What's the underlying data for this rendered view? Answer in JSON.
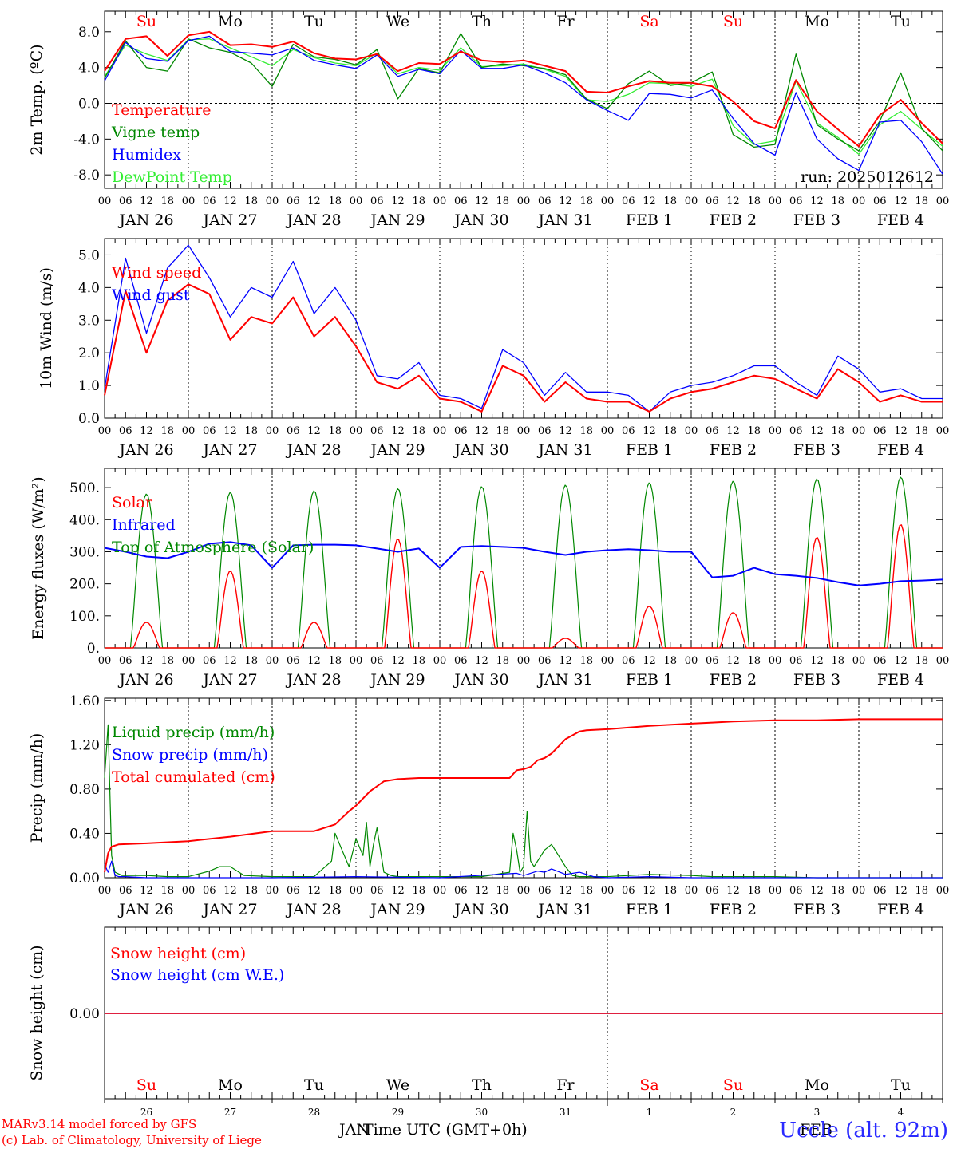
{
  "run_label": "run: 2025012612",
  "footer": {
    "credit_line1": "MARv3.14 model forced by GFS",
    "credit_line2": "(c) Lab. of Climatology, University of Liege",
    "station": "Uccle (alt. 92m)",
    "xaxis_title": "Time UTC (GMT+0h)",
    "month_left": "JAN",
    "month_right": "FEB"
  },
  "colors": {
    "red": "#ff0000",
    "green": "#008800",
    "blue": "#0000ff",
    "lightgreen": "#33ee33",
    "grid": "#000000"
  },
  "day_names": [
    "Su",
    "Mo",
    "Tu",
    "We",
    "Th",
    "Fr",
    "Sa",
    "Su",
    "Mo",
    "Tu"
  ],
  "day_name_colors": [
    "#ff0000",
    "#000000",
    "#000000",
    "#000000",
    "#000000",
    "#000000",
    "#ff0000",
    "#ff0000",
    "#000000",
    "#000000"
  ],
  "day_labels": [
    "JAN 26",
    "JAN 27",
    "JAN 28",
    "JAN 29",
    "JAN 30",
    "JAN 31",
    "FEB  1",
    "FEB  2",
    "FEB  3",
    "FEB  4"
  ],
  "day_numbers": [
    "26",
    "27",
    "28",
    "29",
    "30",
    "31",
    "1",
    "2",
    "3",
    "4"
  ],
  "hour_labels": [
    "00",
    "06",
    "12",
    "18"
  ],
  "chart_data": [
    {
      "type": "line",
      "ylabel": "2m Temp. (ºC)",
      "ylim": [
        -9.5,
        10.3
      ],
      "yticks": [
        -8.0,
        -4.0,
        0.0,
        4.0,
        8.0
      ],
      "ytick_labels": [
        "-8.0",
        "-4.0",
        "0.0",
        "4.0",
        "8.0"
      ],
      "x_unit_note": "hours since JAN 26 00 UTC",
      "x": [
        0,
        6,
        12,
        18,
        24,
        30,
        36,
        42,
        48,
        54,
        60,
        66,
        72,
        78,
        84,
        90,
        96,
        102,
        108,
        114,
        120,
        126,
        132,
        138,
        144,
        150,
        156,
        162,
        168,
        174,
        180,
        186,
        192,
        198,
        204,
        210,
        216,
        222,
        228,
        234,
        240
      ],
      "series": [
        {
          "name": "Temperature",
          "color": "red",
          "values": [
            3.6,
            7.2,
            7.5,
            5.3,
            7.6,
            8.0,
            6.5,
            6.6,
            6.3,
            6.9,
            5.6,
            5.0,
            4.9,
            5.5,
            3.6,
            4.5,
            4.4,
            5.8,
            4.8,
            4.6,
            4.8,
            4.2,
            3.6,
            1.3,
            1.2,
            1.9,
            2.5,
            2.3,
            2.3,
            1.9,
            0.2,
            -2.0,
            -2.8,
            2.6,
            -0.9,
            -2.9,
            -4.8,
            -1.3,
            0.4,
            -2.2,
            -4.5
          ]
        },
        {
          "name": "Vigne temp",
          "color": "green",
          "values": [
            2.8,
            7.0,
            4.0,
            3.6,
            7.2,
            6.2,
            5.7,
            4.5,
            1.9,
            6.6,
            5.2,
            4.9,
            4.3,
            6.0,
            0.5,
            3.9,
            3.4,
            7.8,
            4.0,
            4.4,
            4.2,
            3.9,
            3.2,
            0.5,
            -0.6,
            2.2,
            3.6,
            2.0,
            2.3,
            3.5,
            -3.5,
            -4.9,
            -4.6,
            5.5,
            -2.4,
            -4.0,
            -5.3,
            -2.0,
            3.4,
            -2.8,
            -5.3
          ]
        },
        {
          "name": "Humidex",
          "color": "blue",
          "values": [
            2.5,
            6.8,
            5.0,
            4.7,
            7.0,
            7.5,
            5.8,
            5.6,
            5.4,
            6.2,
            4.8,
            4.3,
            3.9,
            5.4,
            3.0,
            3.8,
            3.3,
            5.9,
            3.9,
            3.9,
            4.3,
            3.4,
            2.3,
            0.4,
            -0.8,
            -1.9,
            1.1,
            1.0,
            0.6,
            1.5,
            -1.7,
            -4.5,
            -5.8,
            1.2,
            -4.0,
            -6.2,
            -7.5,
            -2.1,
            -1.9,
            -4.3,
            -7.9
          ]
        },
        {
          "name": "DewPoint Temp",
          "color": "lightgreen",
          "values": [
            3.0,
            6.5,
            5.5,
            4.8,
            7.1,
            7.2,
            6.2,
            5.2,
            4.2,
            6.0,
            5.1,
            4.5,
            4.2,
            5.6,
            3.3,
            4.0,
            3.7,
            6.2,
            4.1,
            4.2,
            4.4,
            3.8,
            3.0,
            0.4,
            0.2,
            1.0,
            2.3,
            2.2,
            1.9,
            2.7,
            -2.5,
            -4.6,
            -4.2,
            2.5,
            -2.2,
            -3.8,
            -5.7,
            -2.4,
            -0.9,
            -2.9,
            -4.8
          ]
        }
      ],
      "legend": [
        "Temperature",
        "Vigne temp",
        "Humidex",
        "DewPoint Temp"
      ],
      "grid": true
    },
    {
      "type": "line",
      "ylabel": "10m Wind (m/s)",
      "ylim": [
        0,
        5.5
      ],
      "yticks": [
        0,
        1,
        2,
        3,
        4,
        5
      ],
      "ytick_labels": [
        "0.0",
        "1.0",
        "2.0",
        "3.0",
        "4.0",
        "5.0"
      ],
      "x": [
        0,
        6,
        12,
        18,
        24,
        30,
        36,
        42,
        48,
        54,
        60,
        66,
        72,
        78,
        84,
        90,
        96,
        102,
        108,
        114,
        120,
        126,
        132,
        138,
        144,
        150,
        156,
        162,
        168,
        174,
        180,
        186,
        192,
        198,
        204,
        210,
        216,
        222,
        228,
        234,
        240
      ],
      "series": [
        {
          "name": "Wind speed",
          "color": "red",
          "values": [
            0.7,
            3.9,
            2.0,
            3.6,
            4.1,
            3.8,
            2.4,
            3.1,
            2.9,
            3.7,
            2.5,
            3.1,
            2.2,
            1.1,
            0.9,
            1.3,
            0.6,
            0.5,
            0.2,
            1.6,
            1.3,
            0.5,
            1.1,
            0.6,
            0.5,
            0.5,
            0.2,
            0.6,
            0.8,
            0.9,
            1.1,
            1.3,
            1.2,
            0.9,
            0.6,
            1.5,
            1.1,
            0.5,
            0.7,
            0.5,
            0.5
          ]
        },
        {
          "name": "Wind gust",
          "color": "blue",
          "values": [
            0.9,
            4.9,
            2.6,
            4.6,
            5.3,
            4.3,
            3.1,
            4.0,
            3.7,
            4.8,
            3.2,
            4.0,
            3.0,
            1.3,
            1.2,
            1.7,
            0.7,
            0.6,
            0.3,
            2.1,
            1.7,
            0.7,
            1.4,
            0.8,
            0.8,
            0.7,
            0.2,
            0.8,
            1.0,
            1.1,
            1.3,
            1.6,
            1.6,
            1.1,
            0.7,
            1.9,
            1.5,
            0.8,
            0.9,
            0.6,
            0.6
          ]
        }
      ],
      "legend": [
        "Wind speed",
        "Wind gust"
      ],
      "grid": true
    },
    {
      "type": "line",
      "ylabel": "Energy fluxes (W/m²)",
      "ylim": [
        0,
        560
      ],
      "yticks": [
        0,
        100,
        200,
        300,
        400,
        500
      ],
      "ytick_labels": [
        "0.",
        "100.",
        "200.",
        "300.",
        "400.",
        "500."
      ],
      "series": [
        {
          "name": "Solar",
          "color": "red",
          "daily_peaks": [
            80,
            240,
            80,
            340,
            240,
            30,
            130,
            110,
            345,
            385
          ]
        },
        {
          "name": "Infrared",
          "color": "blue",
          "x": [
            0,
            6,
            12,
            18,
            24,
            30,
            36,
            42,
            48,
            54,
            60,
            66,
            72,
            78,
            84,
            90,
            96,
            102,
            108,
            114,
            120,
            126,
            132,
            138,
            144,
            150,
            156,
            162,
            168,
            174,
            180,
            186,
            192,
            198,
            204,
            210,
            216,
            222,
            228,
            234,
            240
          ],
          "values": [
            312,
            300,
            285,
            280,
            300,
            325,
            330,
            320,
            250,
            320,
            322,
            322,
            320,
            310,
            300,
            310,
            250,
            315,
            318,
            315,
            312,
            300,
            290,
            300,
            305,
            308,
            305,
            300,
            300,
            220,
            225,
            250,
            230,
            225,
            218,
            205,
            195,
            200,
            208,
            210,
            213
          ]
        },
        {
          "name": "Top of Atmosphere (Solar)",
          "color": "green",
          "daily_peaks": [
            480,
            485,
            490,
            497,
            503,
            508,
            515,
            520,
            527,
            533
          ]
        }
      ],
      "legend": [
        "Solar",
        "Infrared",
        "Top of Atmosphere (Solar)"
      ],
      "grid": true
    },
    {
      "type": "line",
      "ylabel": "Precip (mm/h)",
      "ylim": [
        0,
        1.62
      ],
      "yticks": [
        0,
        0.4,
        0.8,
        1.2,
        1.6
      ],
      "ytick_labels": [
        "0.00",
        "0.40",
        "0.80",
        "1.20",
        "1.60"
      ],
      "series": [
        {
          "name": "Liquid precip (mm/h)",
          "color": "green",
          "x": [
            0,
            1,
            2,
            3,
            5,
            8,
            12,
            18,
            24,
            30,
            33,
            36,
            40,
            48,
            60,
            65,
            66,
            68,
            70,
            72,
            74,
            75,
            76,
            77,
            78,
            79,
            80,
            82,
            84,
            90,
            96,
            108,
            116,
            117,
            118,
            119,
            120,
            121,
            122,
            123,
            124,
            126,
            128,
            130,
            132,
            134,
            136,
            138,
            140,
            144,
            156,
            168,
            174,
            180,
            192,
            204,
            216,
            228,
            240
          ],
          "values": [
            0.9,
            1.38,
            0.2,
            0.05,
            0.02,
            0.02,
            0.02,
            0.01,
            0.01,
            0.06,
            0.1,
            0.1,
            0.02,
            0.01,
            0.01,
            0.15,
            0.4,
            0.25,
            0.1,
            0.35,
            0.2,
            0.5,
            0.1,
            0.3,
            0.45,
            0.25,
            0.05,
            0.02,
            0.01,
            0.01,
            0.01,
            0.01,
            0.05,
            0.4,
            0.25,
            0.05,
            0.1,
            0.6,
            0.15,
            0.1,
            0.15,
            0.25,
            0.3,
            0.2,
            0.1,
            0.02,
            0.01,
            0.01,
            0.01,
            0.01,
            0.03,
            0.02,
            0.01,
            0.01,
            0.01,
            0.0,
            0.0,
            0.0,
            0.0
          ]
        },
        {
          "name": "Snow precip (mm/h)",
          "color": "blue",
          "x": [
            0,
            1,
            2,
            3,
            4,
            6,
            12,
            24,
            48,
            72,
            96,
            118,
            120,
            124,
            126,
            128,
            132,
            136,
            140,
            144,
            156,
            168,
            180,
            192,
            204,
            216,
            228,
            240
          ],
          "values": [
            0.12,
            0.05,
            0.15,
            0.02,
            0.01,
            0.01,
            0.0,
            0.0,
            0.0,
            0.01,
            0.0,
            0.04,
            0.02,
            0.06,
            0.05,
            0.08,
            0.03,
            0.05,
            0.01,
            0.0,
            0.01,
            0.0,
            0.0,
            0.0,
            0.0,
            0.0,
            0.0,
            0.0
          ]
        },
        {
          "name": "Total cumulated (cm)",
          "color": "red",
          "x": [
            0,
            1,
            2,
            4,
            12,
            24,
            36,
            48,
            60,
            66,
            70,
            72,
            76,
            80,
            84,
            90,
            96,
            108,
            116,
            118,
            120,
            122,
            124,
            126,
            128,
            132,
            136,
            138,
            144,
            156,
            168,
            174,
            180,
            192,
            204,
            216,
            228,
            240
          ],
          "values": [
            0.05,
            0.22,
            0.28,
            0.3,
            0.31,
            0.33,
            0.37,
            0.42,
            0.42,
            0.48,
            0.6,
            0.65,
            0.78,
            0.87,
            0.89,
            0.9,
            0.9,
            0.9,
            0.9,
            0.97,
            0.98,
            1.0,
            1.06,
            1.08,
            1.12,
            1.25,
            1.32,
            1.33,
            1.34,
            1.37,
            1.39,
            1.4,
            1.41,
            1.42,
            1.42,
            1.43,
            1.43,
            1.43
          ]
        }
      ],
      "legend": [
        "Liquid precip (mm/h)",
        "Snow precip (mm/h)",
        "Total cumulated (cm)"
      ],
      "grid": true
    },
    {
      "type": "line",
      "ylabel": "Snow height (cm)",
      "yticks": [
        0
      ],
      "ytick_labels": [
        "0.00"
      ],
      "series": [
        {
          "name": "Snow height (cm)",
          "color": "red",
          "values": [
            0,
            0
          ]
        },
        {
          "name": "Snow height (cm W.E.)",
          "color": "blue",
          "values": [
            0,
            0
          ]
        }
      ],
      "legend": [
        "Snow height (cm)",
        "Snow height (cm W.E.)"
      ],
      "grid": false
    }
  ]
}
